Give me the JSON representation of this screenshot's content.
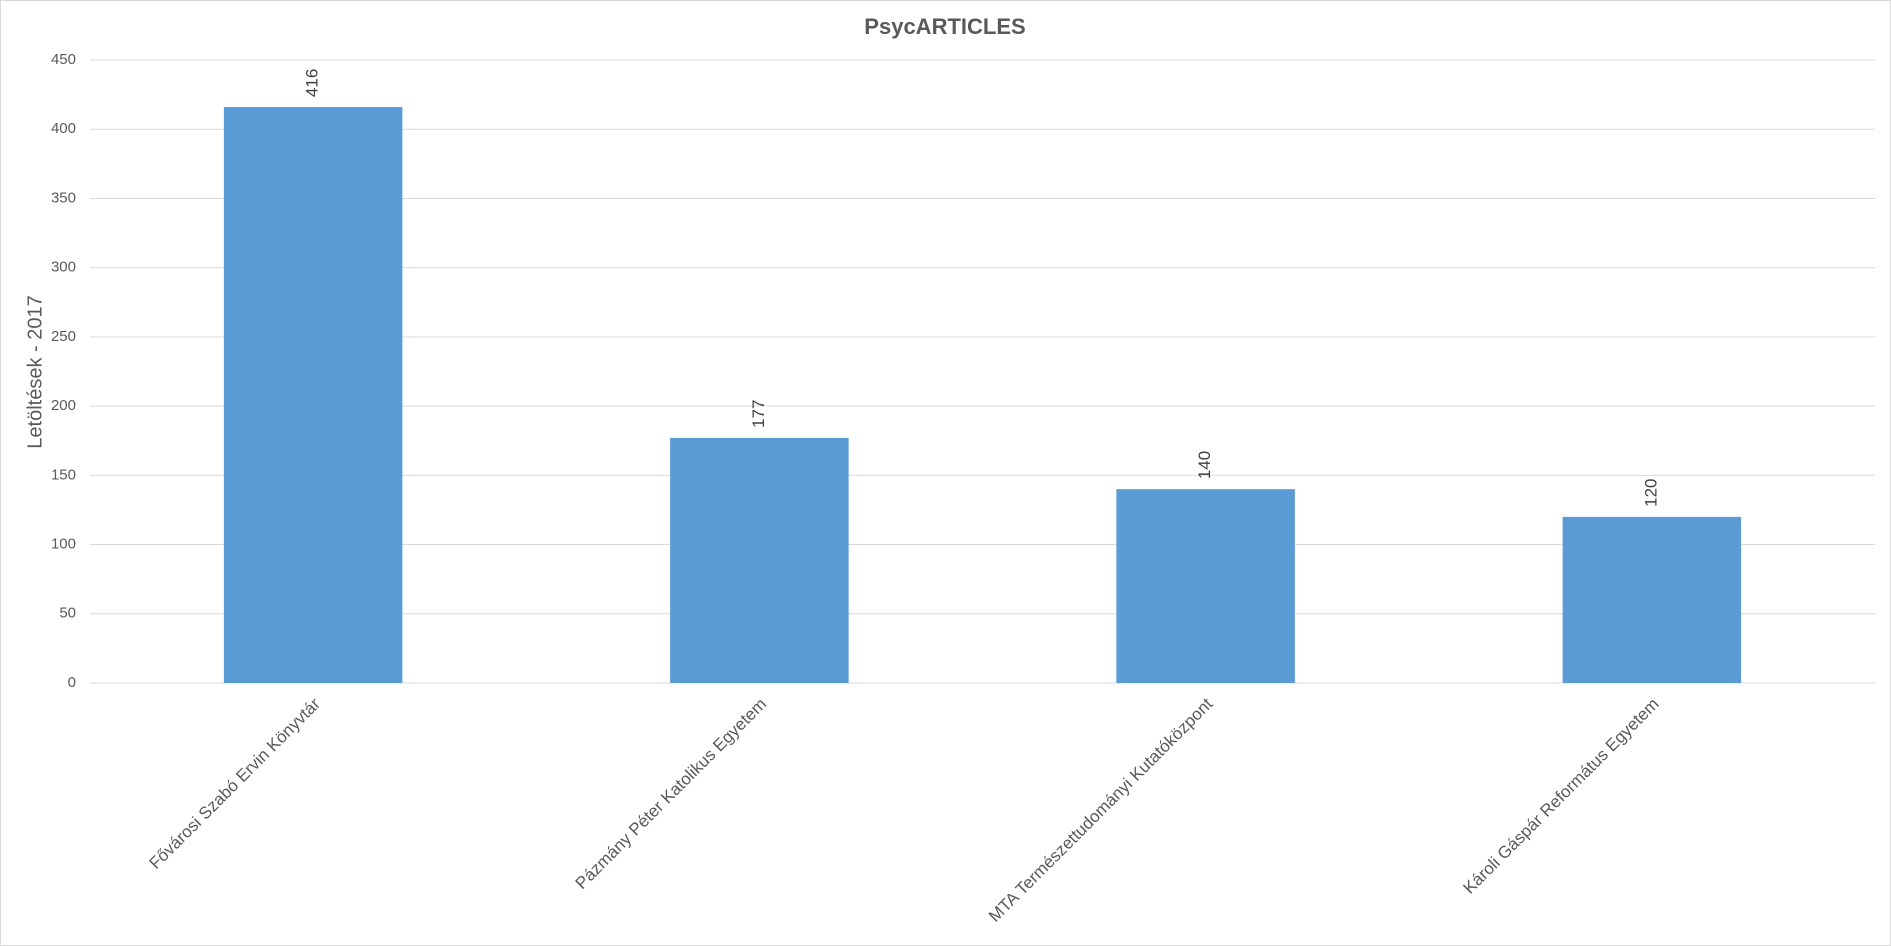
{
  "chart_data": {
    "type": "bar",
    "title": "PsycARTICLES",
    "y_label": "Letöltések - 2017",
    "categories": [
      "Fővárosi Szabó Ervin Könyvtár",
      "Pázmány Péter Katolikus Egyetem",
      "MTA Természettudományi Kutatóközpont",
      "Károli Gáspár Református Egyetem"
    ],
    "values": [
      416,
      177,
      140,
      120
    ],
    "color": "#5b9bd5",
    "ylim": [
      0,
      450
    ],
    "yticks": [
      0,
      50,
      100,
      150,
      200,
      250,
      300,
      350,
      400,
      450
    ],
    "grid": true
  }
}
